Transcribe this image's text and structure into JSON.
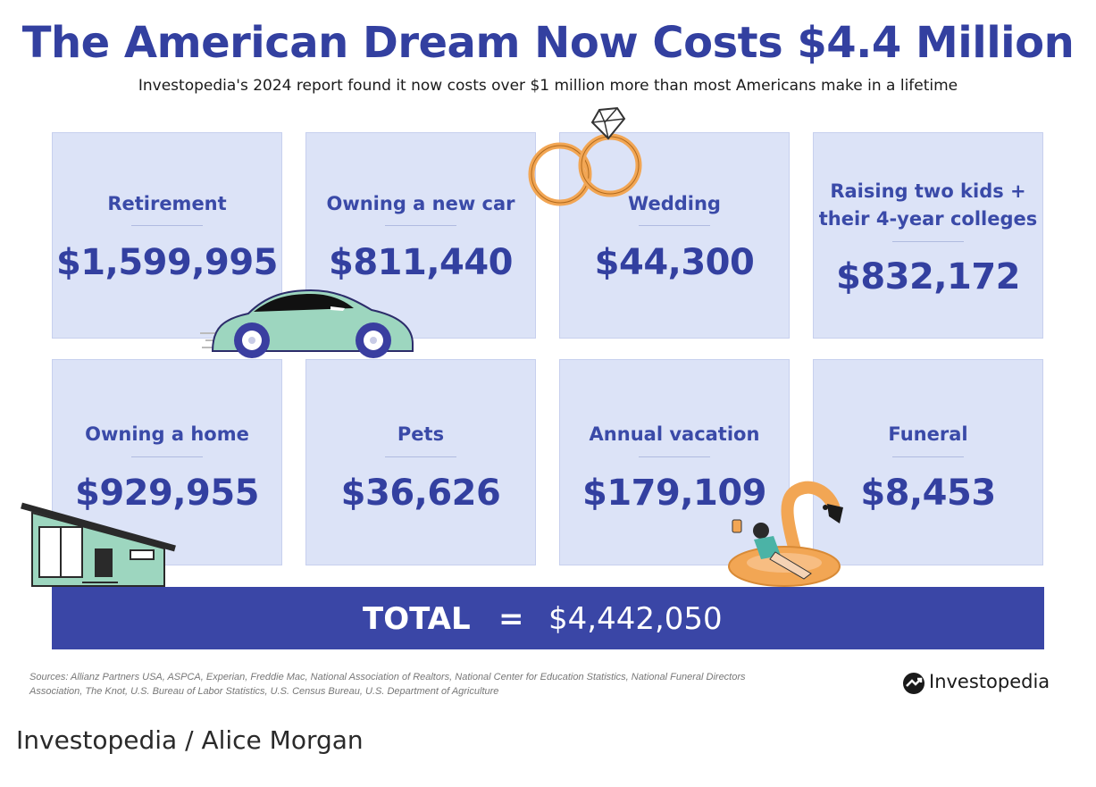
{
  "header": {
    "title": "The American Dream Now Costs $4.4 Million",
    "subtitle": "Investopedia's 2024 report found it now costs over $1 million more than most Americans make in a lifetime"
  },
  "cards": [
    {
      "label": "Retirement",
      "value": "$1,599,995"
    },
    {
      "label": "Owning a new car",
      "value": "$811,440"
    },
    {
      "label": "Wedding",
      "value": "$44,300"
    },
    {
      "label": "Raising two kids + their 4-year colleges",
      "label_line1": "Raising two kids +",
      "label_line2": "their 4-year colleges",
      "value": "$832,172"
    },
    {
      "label": "Owning a home",
      "value": "$929,955"
    },
    {
      "label": "Pets",
      "value": "$36,626"
    },
    {
      "label": "Annual vacation",
      "value": "$179,109"
    },
    {
      "label": "Funeral",
      "value": "$8,453"
    }
  ],
  "total": {
    "label": "TOTAL",
    "equals": "=",
    "value": "$4,442,050"
  },
  "sources": {
    "line1": "Sources: Allianz Partners USA, ASPCA, Experian, Freddie Mac, National Association of Realtors, National Center for Education Statistics, National Funeral Directors",
    "line2": "Association, The Knot, U.S. Bureau of Labor Statistics, U.S. Census Bureau, U.S. Department of Agriculture"
  },
  "brand": {
    "name": "Investopedia",
    "icon": "investopedia-logo-icon"
  },
  "caption": "Investopedia / Alice Morgan",
  "colors": {
    "accent": "#3340a0",
    "card_bg": "#dce3f7",
    "total_bar": "#3a46a6",
    "car": "#9dd6bf",
    "ring": "#f2a654",
    "house": "#9dd6bf"
  },
  "illustrations": [
    "car-illustration",
    "wedding-rings-illustration",
    "house-illustration",
    "flamingo-float-illustration"
  ]
}
